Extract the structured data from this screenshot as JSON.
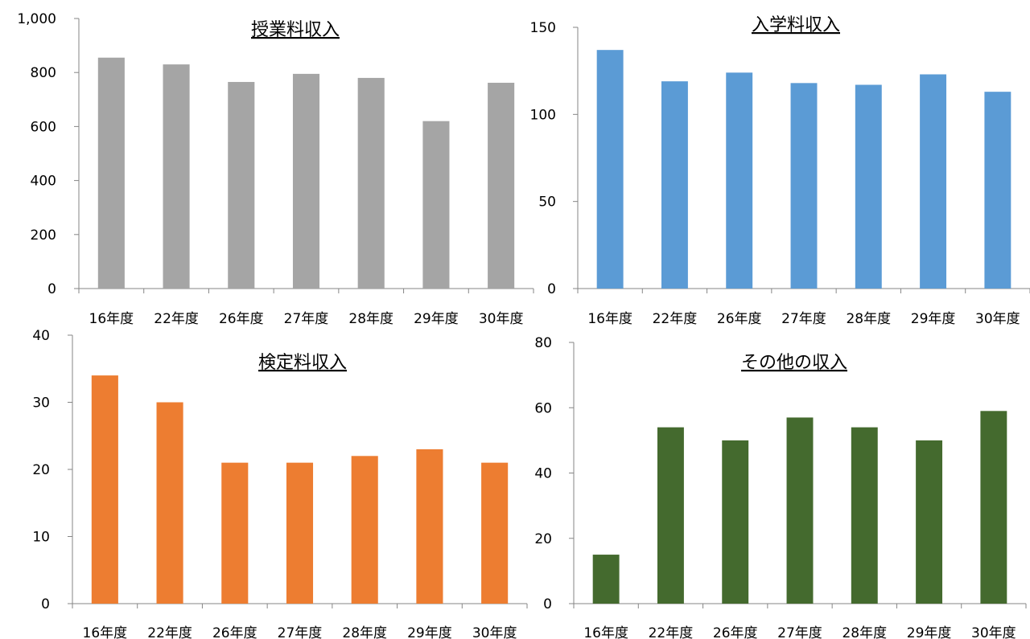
{
  "chart_data": [
    {
      "type": "bar",
      "title": "授業料収入",
      "categories": [
        "16年度",
        "22年度",
        "26年度",
        "27年度",
        "28年度",
        "29年度",
        "30年度"
      ],
      "values": [
        855,
        830,
        765,
        795,
        780,
        620,
        762
      ],
      "yticks": [
        "0",
        "200",
        "400",
        "600",
        "800",
        "1,000"
      ],
      "ylim": [
        0,
        1000
      ],
      "color": "#a5a5a5",
      "grid": false
    },
    {
      "type": "bar",
      "title": "入学料収入",
      "categories": [
        "16年度",
        "22年度",
        "26年度",
        "27年度",
        "28年度",
        "29年度",
        "30年度"
      ],
      "values": [
        137,
        119,
        124,
        118,
        117,
        123,
        113
      ],
      "yticks": [
        "0",
        "50",
        "100",
        "150"
      ],
      "ylim": [
        0,
        150
      ],
      "color": "#5b9bd5",
      "grid": false
    },
    {
      "type": "bar",
      "title": "検定料収入",
      "categories": [
        "16年度",
        "22年度",
        "26年度",
        "27年度",
        "28年度",
        "29年度",
        "30年度"
      ],
      "values": [
        34,
        30,
        21,
        21,
        22,
        23,
        21
      ],
      "yticks": [
        "0",
        "10",
        "20",
        "30",
        "40"
      ],
      "ylim": [
        0,
        40
      ],
      "color": "#ed7d31",
      "grid": false
    },
    {
      "type": "bar",
      "title": "その他の収入",
      "categories": [
        "16年度",
        "22年度",
        "26年度",
        "27年度",
        "28年度",
        "29年度",
        "30年度"
      ],
      "values": [
        15,
        54,
        50,
        57,
        54,
        50,
        59
      ],
      "yticks": [
        "0",
        "20",
        "40",
        "60",
        "80"
      ],
      "ylim": [
        0,
        80
      ],
      "color": "#446a2e",
      "grid": false
    }
  ]
}
